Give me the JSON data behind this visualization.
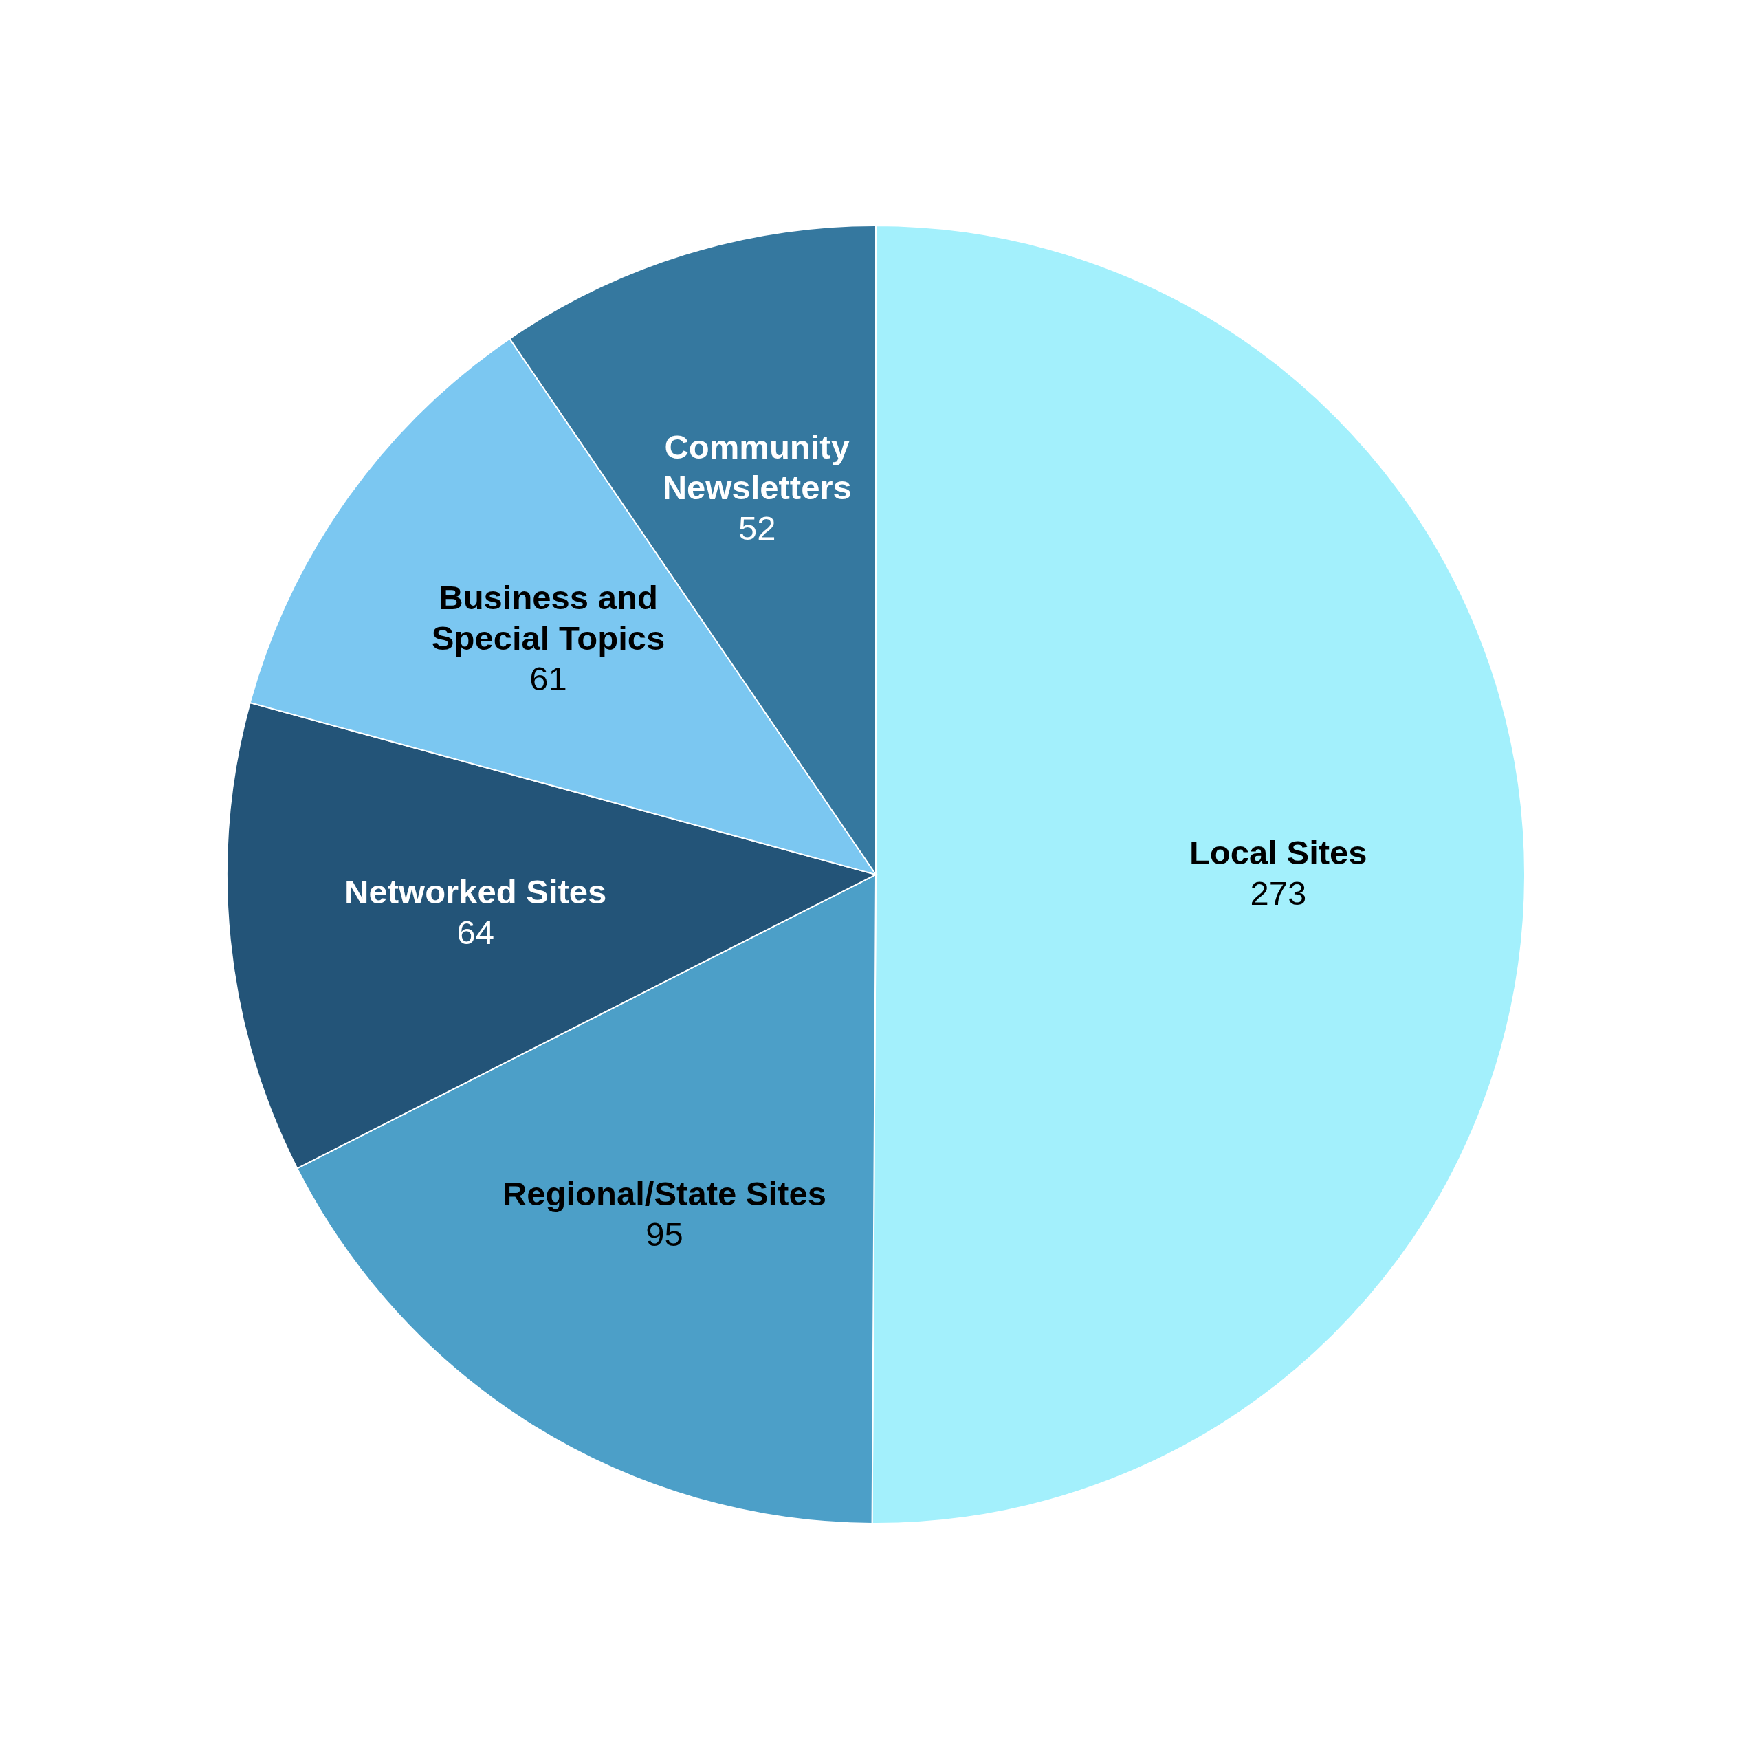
{
  "chart_data": {
    "type": "pie",
    "categories": [
      "Local Sites",
      "Regional/State Sites",
      "Networked Sites",
      "Business and Special Topics",
      "Community Newsletters"
    ],
    "values": [
      273,
      95,
      64,
      61,
      52
    ],
    "colors": [
      "#a3f0fc",
      "#4c9fc8",
      "#235478",
      "#7bc7f1",
      "#35789f"
    ],
    "data_labels": true
  }
}
